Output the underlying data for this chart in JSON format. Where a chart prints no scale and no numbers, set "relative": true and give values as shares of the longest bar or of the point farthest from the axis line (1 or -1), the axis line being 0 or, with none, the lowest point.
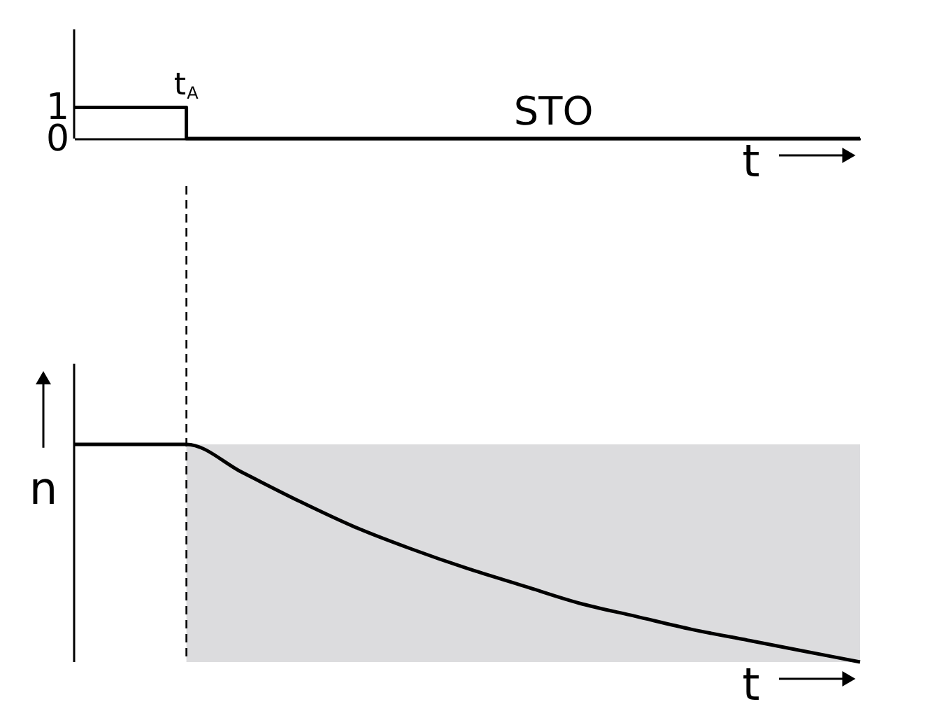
{
  "chart_data": [
    {
      "type": "step",
      "categories": [
        null,
        null,
        null,
        null,
        null,
        null,
        null,
        null,
        null,
        null,
        null,
        null,
        null,
        null,
        null
      ],
      "xlabel": "t",
      "ylim": [
        0,
        3.5
      ],
      "yticks": [
        0,
        1
      ],
      "tick_labels": "y",
      "grid": false,
      "series": [
        {
          "color": "#000000",
          "values": [
            1,
            1,
            0,
            0,
            0,
            0,
            0,
            0,
            0,
            0,
            0,
            0,
            0,
            0,
            0
          ]
        }
      ],
      "annotations": [
        "STO",
        {
          "text": "t$_{A}$",
          "y": 1
        }
      ]
    },
    {
      "type": "line",
      "relative": true,
      "categories": [
        null,
        null,
        null,
        null,
        null,
        null,
        null,
        null,
        null,
        null,
        null,
        null,
        null,
        null,
        null
      ],
      "xlabel": "t",
      "ylabel": "n",
      "tick_labels": false,
      "grid": false,
      "series": [
        {
          "type": "area",
          "color": "#dcdcde",
          "values": [
            null,
            null,
            1,
            1,
            1,
            1,
            1,
            1,
            1,
            1,
            1,
            1,
            1,
            1,
            1
          ]
        },
        {
          "color": "#000000",
          "values": [
            1,
            1,
            1,
            0.87,
            0.74,
            0.62,
            0.52,
            0.43,
            0.35,
            0.27,
            0.21,
            0.15,
            0.1,
            0.05,
            0
          ]
        }
      ]
    }
  ]
}
